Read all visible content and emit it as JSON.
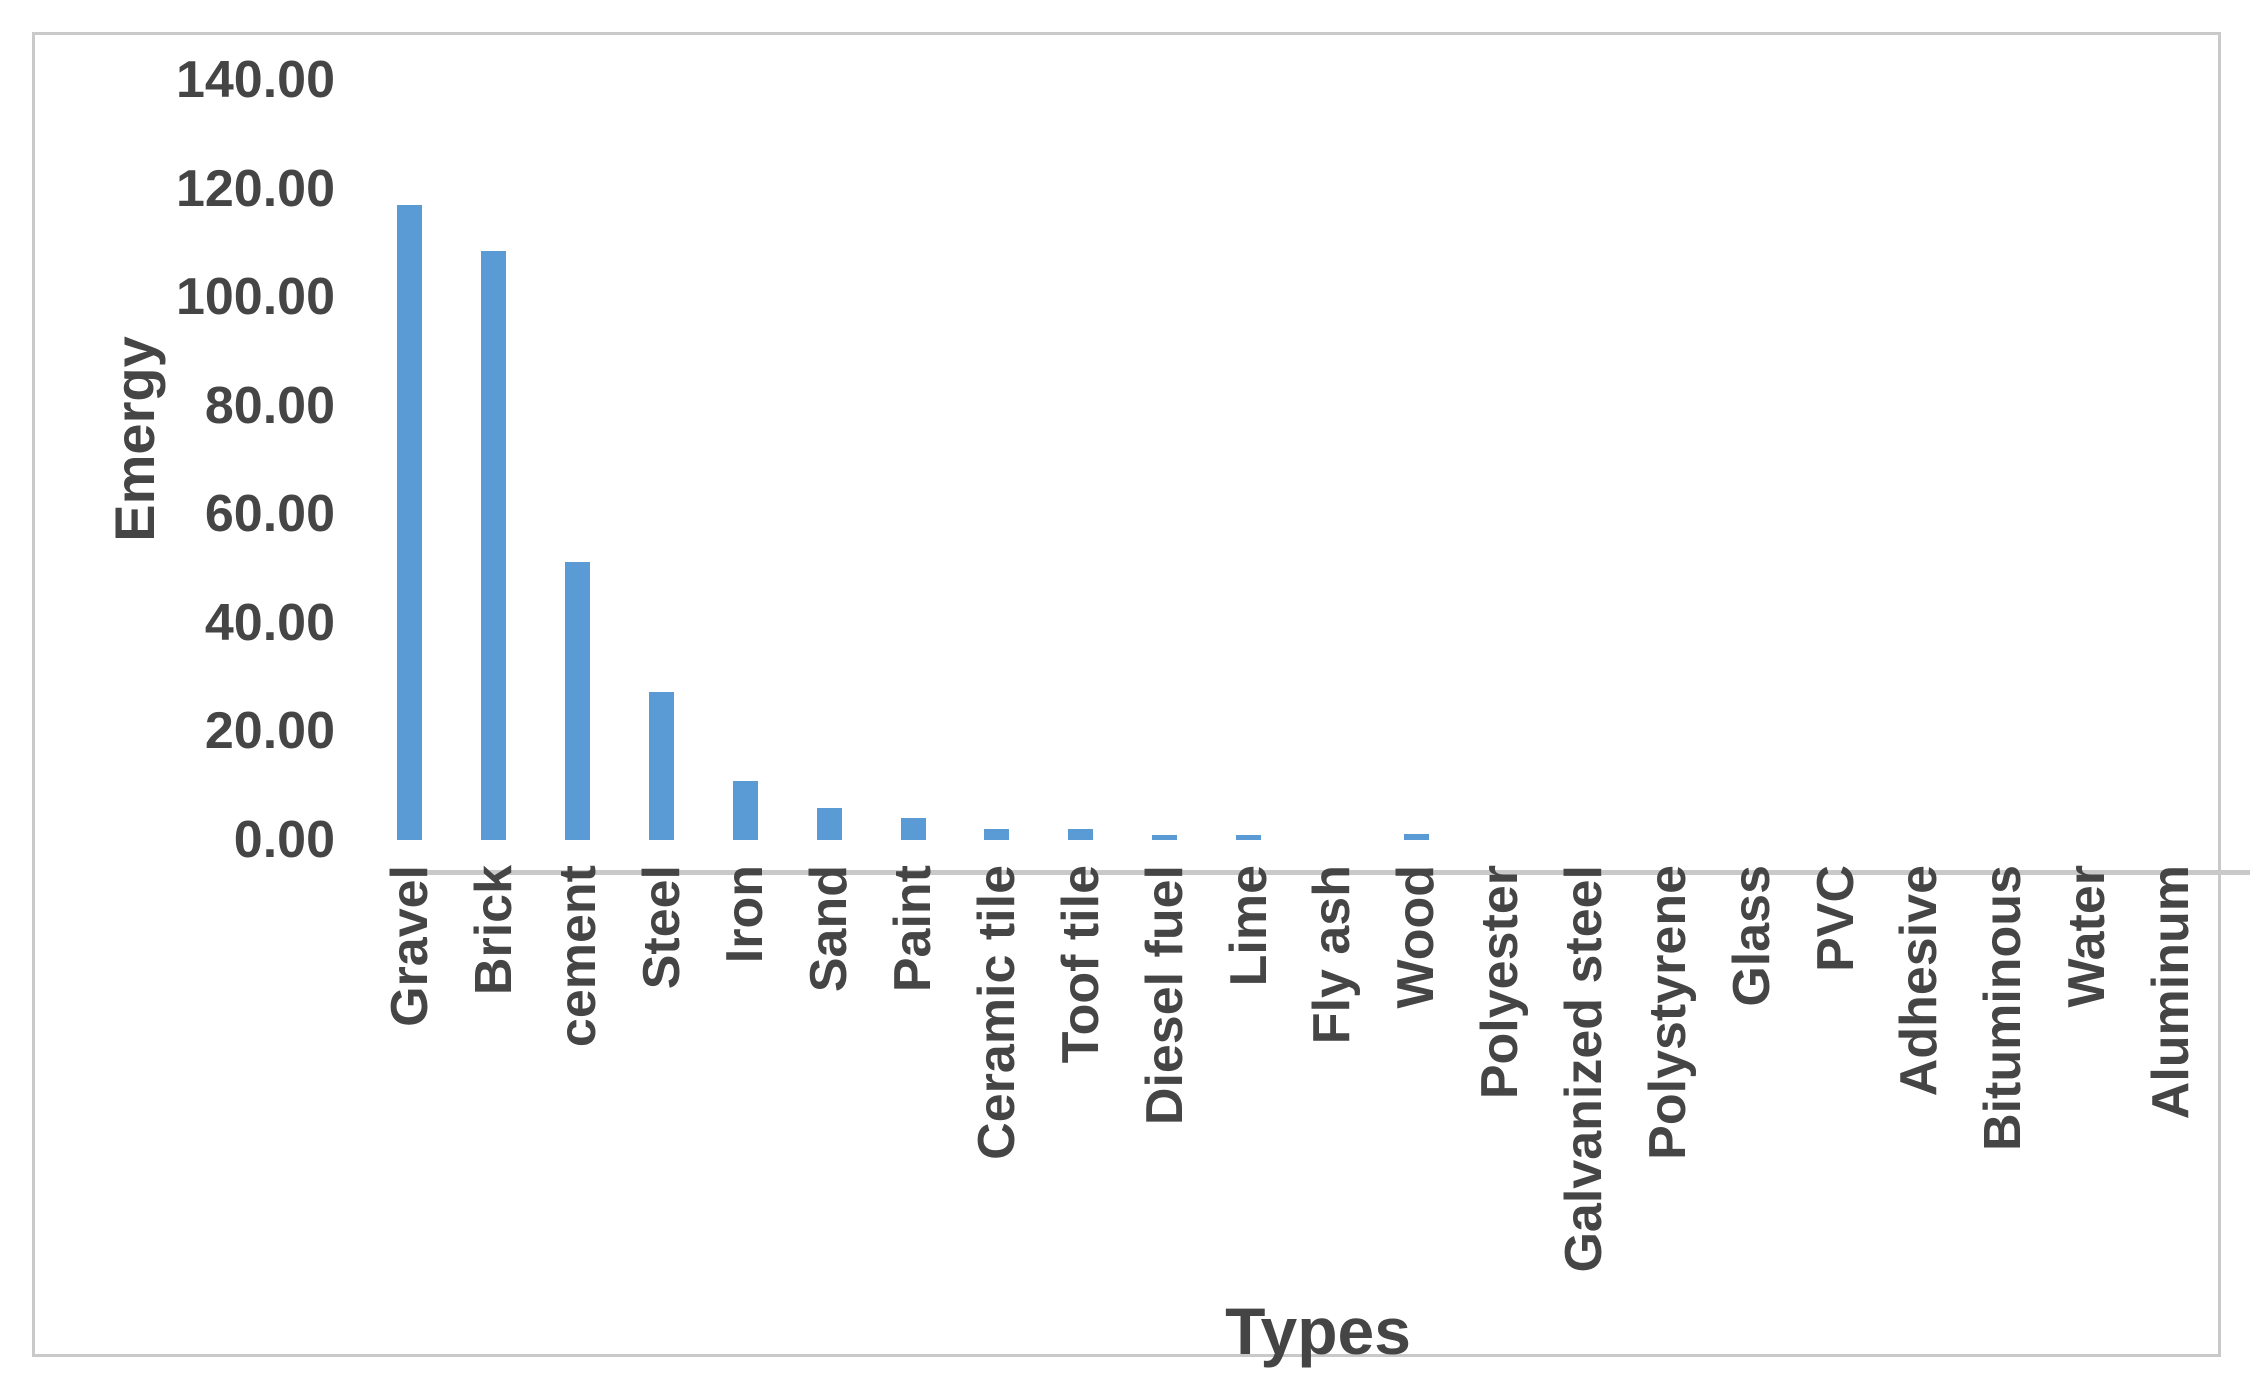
{
  "chart_data": {
    "type": "bar",
    "title": "",
    "xlabel": "Types",
    "ylabel": "Emergy",
    "categories": [
      "Gravel",
      "Brick",
      "cement",
      "Steel",
      "Iron",
      "Sand",
      "Paint",
      "Ceramic tile",
      "Toof tile",
      "Diesel fuel",
      "Lime",
      "Fly ash",
      "Wood",
      "Polyester",
      "Galvanized steel",
      "Polystyrene",
      "Glass",
      "PVC",
      "Adhesive",
      "Bituminous",
      "Water",
      "Aluminum"
    ],
    "values": [
      117.0,
      108.5,
      51.3,
      27.3,
      10.9,
      5.9,
      4.1,
      2.0,
      2.0,
      1.0,
      1.0,
      0,
      1.1,
      0,
      0,
      0,
      0,
      0,
      0,
      0,
      0,
      0
    ],
    "ylim": [
      0,
      140
    ],
    "yticks": [
      "0.00",
      "20.00",
      "40.00",
      "60.00",
      "80.00",
      "100.00",
      "120.00",
      "140.00"
    ],
    "grid": false,
    "legend": "none",
    "bar_color": "#5B9BD5",
    "axis_color": "#C9C9C9",
    "text_color": "#454545",
    "frame_border_color": "#C9C9C9"
  }
}
